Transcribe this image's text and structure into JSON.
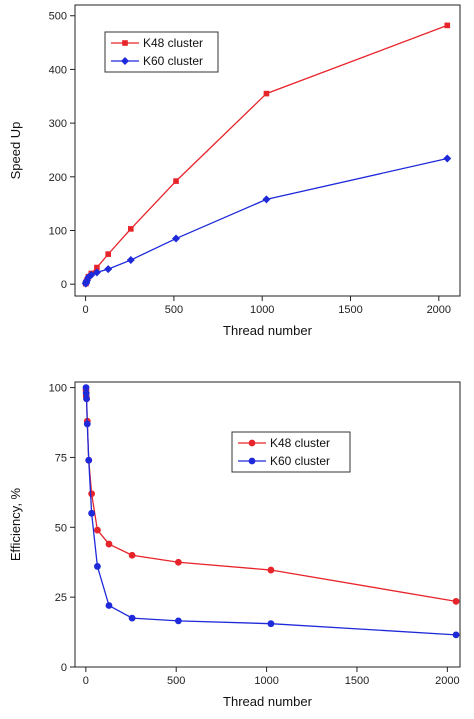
{
  "chart_data": [
    {
      "type": "line",
      "xlabel": "Thread number",
      "ylabel": "Speed Up",
      "xlim": [
        -60,
        2120
      ],
      "ylim": [
        -22,
        520
      ],
      "xticks": [
        0,
        500,
        1000,
        1500,
        2000
      ],
      "yticks": [
        0,
        100,
        200,
        300,
        400,
        500
      ],
      "legend_position": "top-left",
      "series": [
        {
          "name": "K48 cluster",
          "color": "#e8242b",
          "marker": "square",
          "x": [
            1,
            2,
            4,
            8,
            16,
            32,
            64,
            128,
            256,
            512,
            1024,
            2048
          ],
          "y": [
            1,
            2,
            4,
            7,
            14,
            20,
            31,
            56,
            103,
            192,
            355,
            482
          ]
        },
        {
          "name": "K60 cluster",
          "color": "#1e2ad9",
          "marker": "diamond",
          "x": [
            1,
            2,
            4,
            8,
            16,
            32,
            64,
            128,
            256,
            512,
            1024,
            2048
          ],
          "y": [
            1,
            2,
            4,
            7,
            13,
            17,
            22,
            28,
            45,
            85,
            158,
            234
          ]
        }
      ]
    },
    {
      "type": "line",
      "xlabel": "Thread number",
      "ylabel": "Efficiency, %",
      "xlim": [
        -60,
        2070
      ],
      "ylim": [
        0,
        102
      ],
      "xticks": [
        0,
        500,
        1000,
        1500,
        2000
      ],
      "yticks": [
        0,
        25,
        50,
        75,
        100
      ],
      "legend_position": "top-right",
      "series": [
        {
          "name": "K48 cluster",
          "color": "#e8242b",
          "marker": "circle",
          "x": [
            1,
            2,
            4,
            8,
            16,
            32,
            64,
            128,
            256,
            512,
            1024,
            2048
          ],
          "y": [
            99,
            97,
            96,
            88,
            74,
            62,
            49,
            44,
            40,
            37.5,
            34.7,
            23.5
          ]
        },
        {
          "name": "K60 cluster",
          "color": "#1e2ad9",
          "marker": "circle",
          "x": [
            1,
            2,
            4,
            8,
            16,
            32,
            64,
            128,
            256,
            512,
            1024,
            2048
          ],
          "y": [
            100,
            98,
            96,
            87,
            74,
            55,
            36,
            22,
            17.5,
            16.5,
            15.5,
            11.5
          ]
        }
      ]
    }
  ]
}
